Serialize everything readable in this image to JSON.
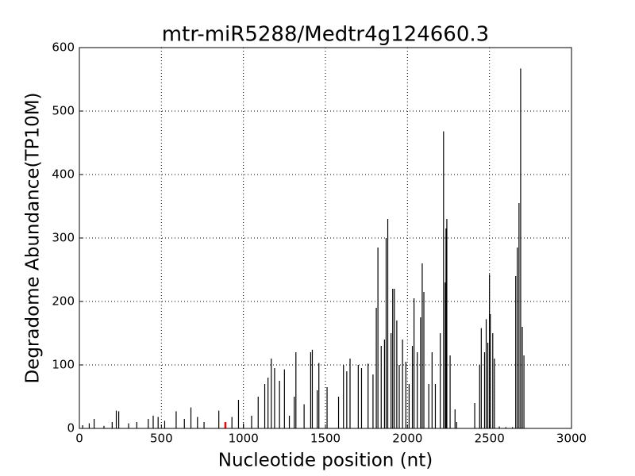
{
  "chart_data": {
    "type": "stem",
    "title": "mtr-miR5288/Medtr4g124660.3",
    "x_label": "Nucleotide position (nt)",
    "y_label": "Degradome Abundance(TP10M)",
    "x": [
      20,
      60,
      90,
      150,
      200,
      225,
      240,
      300,
      350,
      420,
      450,
      480,
      520,
      590,
      640,
      680,
      720,
      760,
      850,
      930,
      970,
      1000,
      1050,
      1090,
      1130,
      1150,
      1170,
      1190,
      1220,
      1250,
      1280,
      1310,
      1320,
      1370,
      1410,
      1420,
      1450,
      1460,
      1510,
      1580,
      1610,
      1630,
      1650,
      1700,
      1720,
      1760,
      1790,
      1810,
      1820,
      1840,
      1860,
      1870,
      1880,
      1900,
      1910,
      1920,
      1935,
      1950,
      1970,
      1990,
      2010,
      2030,
      2040,
      2060,
      2080,
      2090,
      2100,
      2130,
      2150,
      2170,
      2200,
      2220,
      2230,
      2235,
      2240,
      2260,
      2290,
      2300,
      2410,
      2440,
      2450,
      2470,
      2480,
      2490,
      2500,
      2505,
      2520,
      2530,
      2560,
      2600,
      2640,
      2660,
      2670,
      2680,
      2690,
      2700,
      2710
    ],
    "values": [
      5,
      8,
      15,
      4,
      10,
      28,
      27,
      8,
      10,
      15,
      20,
      18,
      12,
      27,
      15,
      33,
      18,
      10,
      28,
      18,
      45,
      8,
      20,
      50,
      70,
      80,
      110,
      95,
      75,
      93,
      20,
      50,
      120,
      38,
      120,
      124,
      60,
      103,
      65,
      50,
      100,
      90,
      110,
      100,
      95,
      102,
      85,
      190,
      285,
      130,
      140,
      300,
      330,
      150,
      220,
      220,
      170,
      100,
      140,
      105,
      70,
      130,
      205,
      120,
      175,
      260,
      215,
      70,
      120,
      70,
      150,
      468,
      230,
      315,
      330,
      115,
      30,
      10,
      40,
      100,
      158,
      120,
      172,
      135,
      243,
      180,
      150,
      110,
      3,
      2,
      2,
      240,
      285,
      355,
      567,
      160,
      115
    ],
    "color": "#000000",
    "highlight": {
      "x": 890,
      "value": 10,
      "color": "#ff0000"
    },
    "xlim": [
      0,
      3000
    ],
    "xticks": [
      0,
      500,
      1000,
      1500,
      2000,
      2500,
      3000
    ],
    "ylim": [
      0,
      600
    ],
    "yticks": [
      0,
      100,
      200,
      300,
      400,
      500,
      600
    ],
    "grid": true
  }
}
